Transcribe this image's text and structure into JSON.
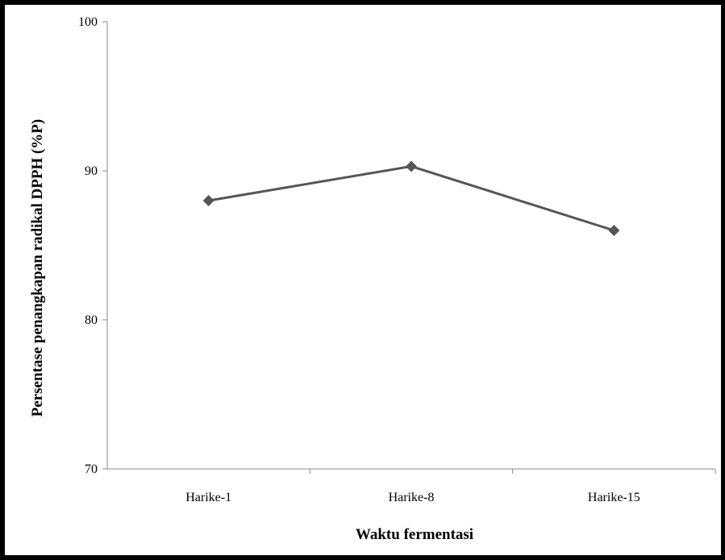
{
  "chart_data": {
    "type": "line",
    "categories": [
      "Harike-1",
      "Harike-8",
      "Harike-15"
    ],
    "series": [
      {
        "values": [
          88.0,
          90.3,
          86.0
        ]
      }
    ],
    "xlabel": "Waktu fermentasi",
    "ylabel": "Persentase penangkapan radikal DPPH (%P)",
    "ylim": [
      70,
      100
    ],
    "yticks": [
      70,
      80,
      90,
      100
    ],
    "grid": false,
    "legend": "none",
    "line_color": "#555555",
    "marker": "diamond"
  }
}
